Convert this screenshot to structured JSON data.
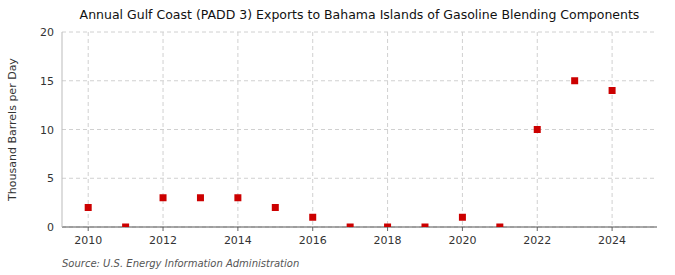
{
  "chart_data": {
    "type": "scatter",
    "title": "Annual Gulf Coast (PADD 3) Exports to Bahama Islands of Gasoline Blending Components",
    "y_label": "Thousand Barrels per Day",
    "source": "Source: U.S. Energy Information Administration",
    "x": [
      2010,
      2011,
      2012,
      2013,
      2014,
      2015,
      2016,
      2017,
      2018,
      2019,
      2020,
      2021,
      2022,
      2023,
      2024
    ],
    "values": [
      2,
      0,
      3,
      3,
      3,
      2,
      1,
      0,
      0,
      0,
      1,
      0,
      10,
      15,
      14
    ],
    "color": "#cc0000",
    "marker": "square",
    "xlim": [
      2009.3,
      2025.2
    ],
    "ylim": [
      0,
      20
    ],
    "xticks": [
      2010,
      2012,
      2014,
      2016,
      2018,
      2020,
      2022,
      2024
    ],
    "yticks": [
      0,
      5,
      10,
      15,
      20
    ],
    "grid": true
  }
}
